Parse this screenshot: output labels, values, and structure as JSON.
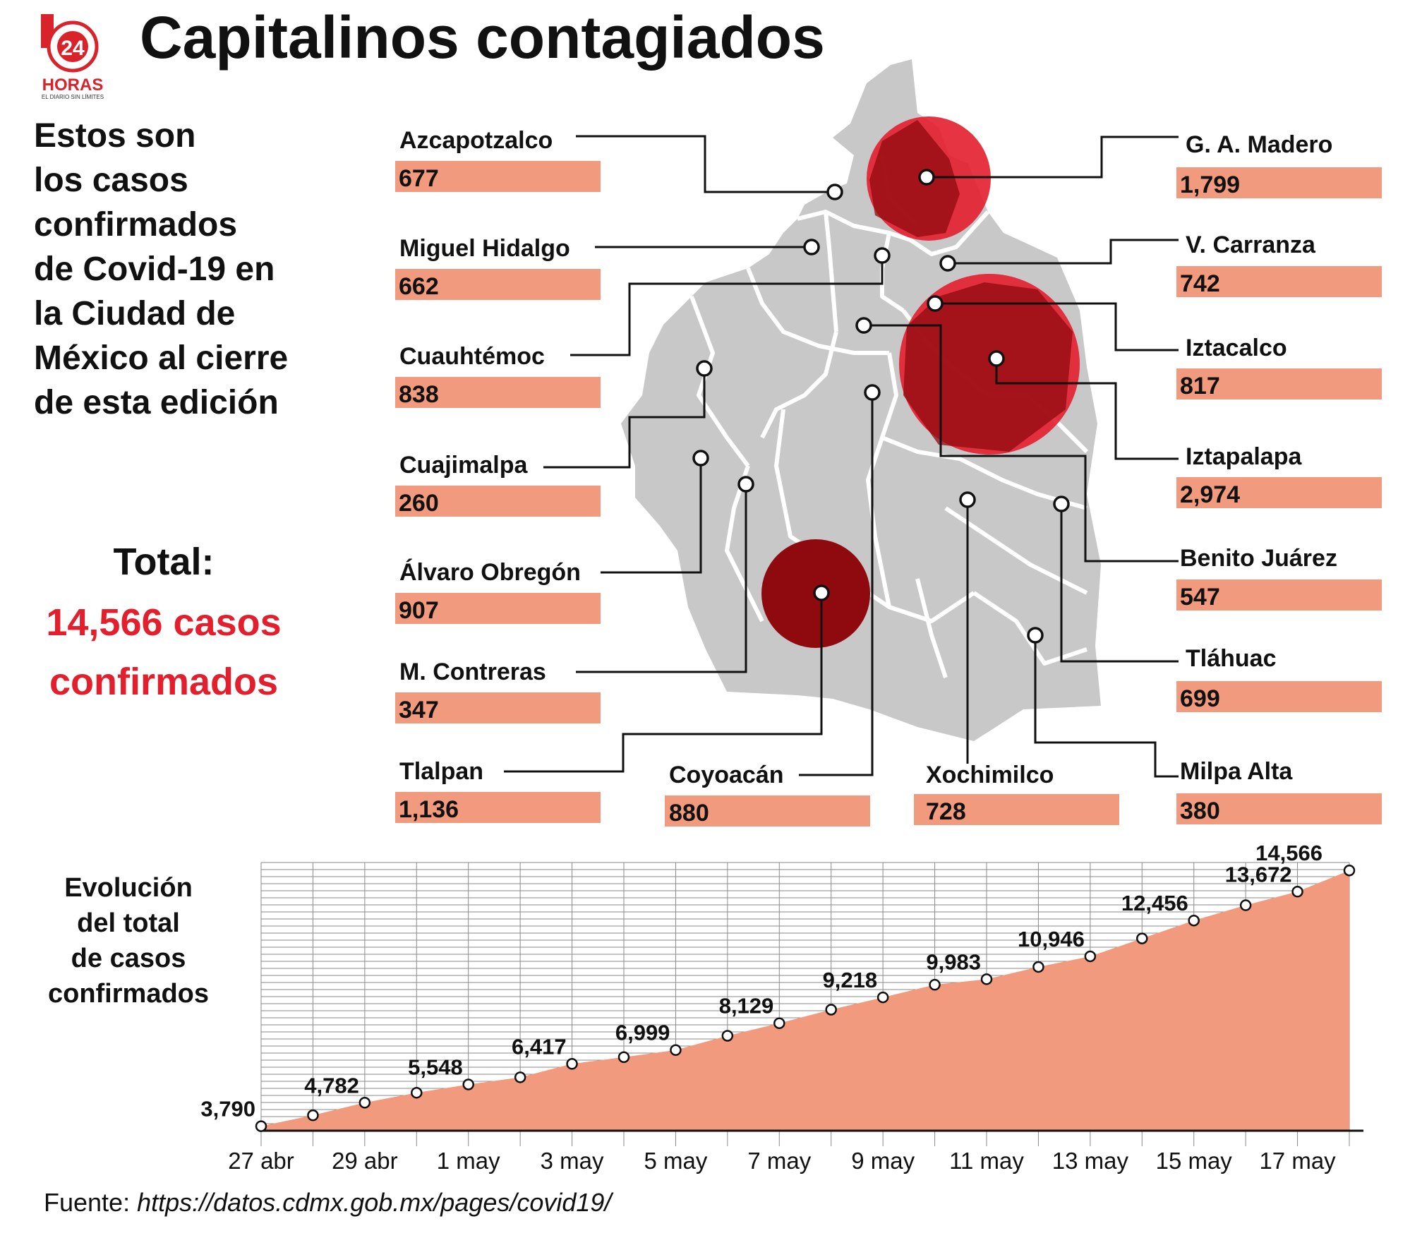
{
  "logo": {
    "number": "24",
    "name": "HORAS",
    "tagline": "EL DIARIO SIN LÍMITES"
  },
  "title": "Capitalinos contagiados",
  "intro_lines": [
    "Estos son",
    "los casos",
    "confirmados",
    "de Covid-19 en",
    "la Ciudad de",
    "México al cierre",
    "de esta edición"
  ],
  "total": {
    "label": "Total:",
    "line1": "14,566  casos",
    "line2": "confirmados"
  },
  "colors": {
    "map": "#c8c8c9",
    "bar": "#f19a7d",
    "circle": "#e31e2d",
    "circle_dark": "#8f0a0f",
    "total": "#e31e2d",
    "area": "#f19a7d"
  },
  "boroughs": [
    {
      "name": "Azcapotzalco",
      "value": "677"
    },
    {
      "name": "Miguel Hidalgo",
      "value": "662"
    },
    {
      "name": "Cuauhtémoc",
      "value": "838"
    },
    {
      "name": "Cuajimalpa",
      "value": "260"
    },
    {
      "name": "Álvaro Obregón",
      "value": "907"
    },
    {
      "name": "M. Contreras",
      "value": "347"
    },
    {
      "name": "Tlalpan",
      "value": "1,136"
    },
    {
      "name": "Coyoacán",
      "value": "880"
    },
    {
      "name": "Xochimilco",
      "value": "728"
    },
    {
      "name": "G. A. Madero",
      "value": "1,799"
    },
    {
      "name": "V. Carranza",
      "value": "742"
    },
    {
      "name": "Iztacalco",
      "value": "817"
    },
    {
      "name": "Iztapalapa",
      "value": "2,974"
    },
    {
      "name": "Benito Juárez",
      "value": "547"
    },
    {
      "name": "Tláhuac",
      "value": "699"
    },
    {
      "name": "Milpa Alta",
      "value": "380"
    }
  ],
  "chart_title_lines": [
    "Evolución",
    "del total",
    "de casos",
    "confirmados"
  ],
  "chart_data": {
    "type": "area",
    "x": [
      "27 abr",
      "28 abr",
      "29 abr",
      "30 abr",
      "1 may",
      "2 may",
      "3 may",
      "4 may",
      "5 may",
      "6 may",
      "7 may",
      "8 may",
      "9 may",
      "10 may",
      "11 may",
      "12 may",
      "13 may",
      "14 may",
      "15 may",
      "16 may",
      "17 may",
      "18 may"
    ],
    "values": [
      3790,
      4250,
      4782,
      5200,
      5548,
      5850,
      6417,
      6700,
      6999,
      7600,
      8129,
      8700,
      9218,
      9750,
      9983,
      10500,
      10946,
      11700,
      12456,
      13100,
      13672,
      14566
    ],
    "labeled_points": [
      {
        "index": 0,
        "label": "3,790"
      },
      {
        "index": 2,
        "label": "4,782"
      },
      {
        "index": 4,
        "label": "5,548"
      },
      {
        "index": 6,
        "label": "6,417"
      },
      {
        "index": 8,
        "label": "6,999"
      },
      {
        "index": 10,
        "label": "8,129"
      },
      {
        "index": 12,
        "label": "9,218"
      },
      {
        "index": 14,
        "label": "9,983"
      },
      {
        "index": 16,
        "label": "10,946"
      },
      {
        "index": 18,
        "label": "12,456"
      },
      {
        "index": 20,
        "label": "13,672"
      },
      {
        "index": 21,
        "label": "14,566"
      }
    ],
    "x_tick_labels": [
      "27 abr",
      "29 abr",
      "1 may",
      "3 may",
      "5 may",
      "7 may",
      "9 may",
      "11 may",
      "13 may",
      "15 may",
      "17 may"
    ],
    "ylim": [
      3600,
      14900
    ],
    "grid": true
  },
  "source": {
    "prefix": "Fuente: ",
    "url": "https://datos.cdmx.gob.mx/pages/covid19/"
  }
}
